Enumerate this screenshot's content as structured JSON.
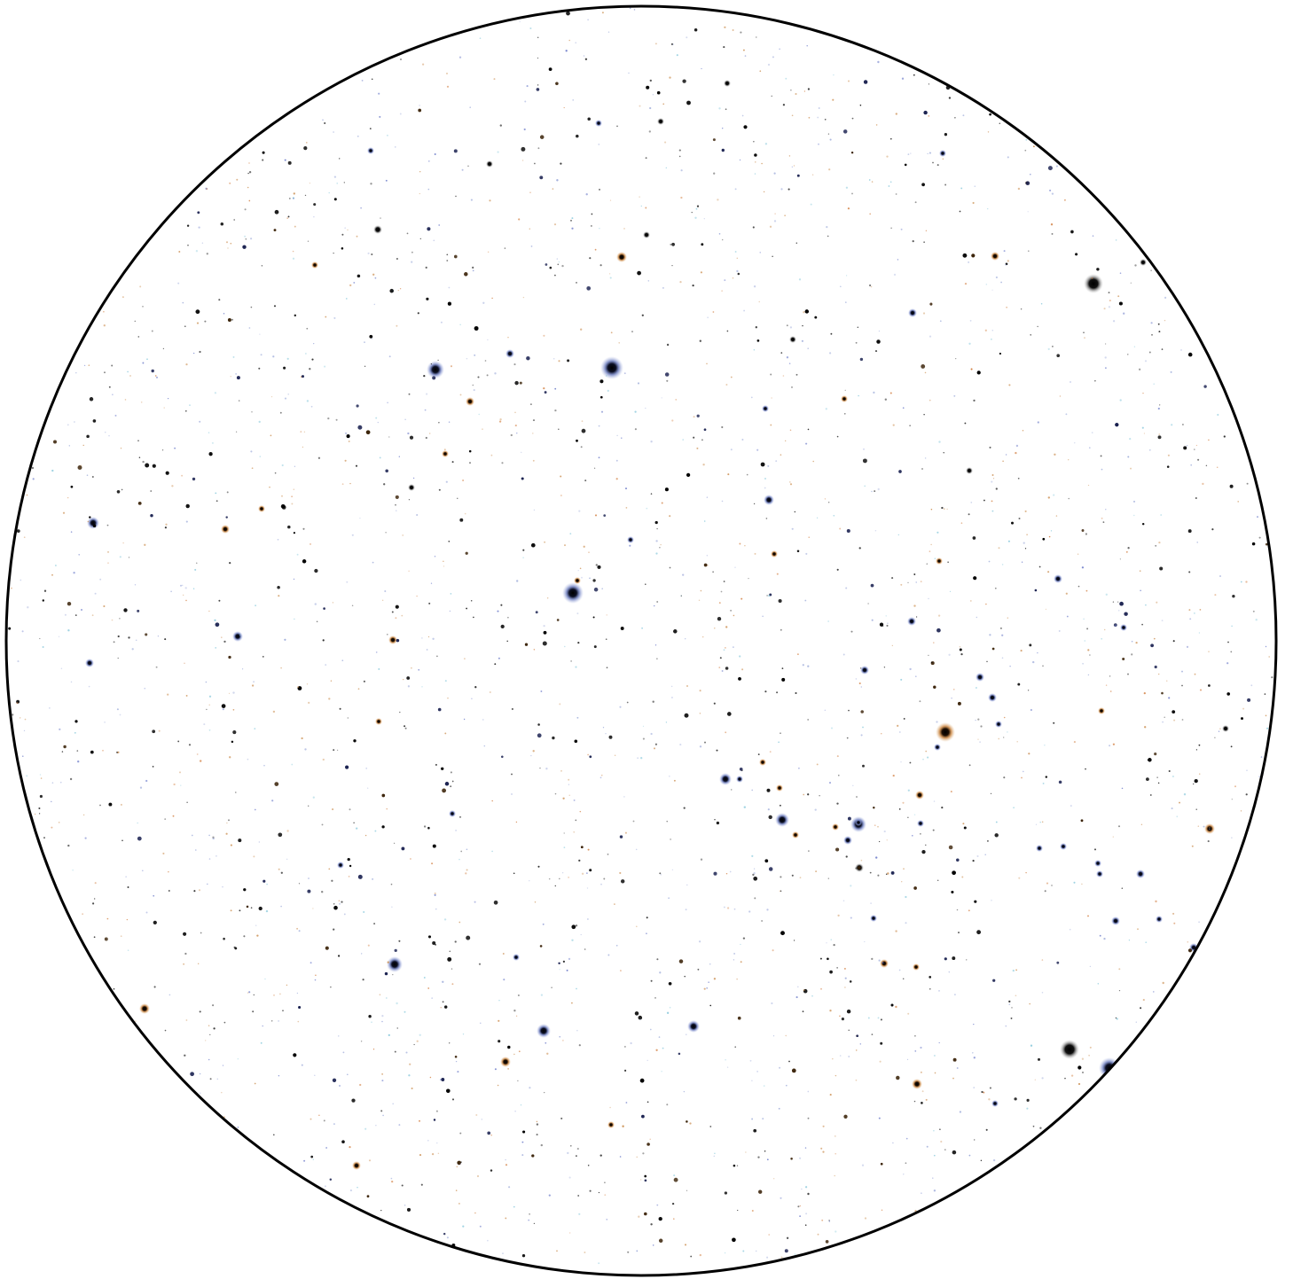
{
  "view": {
    "type": "star-field",
    "background_color": "#ffffff",
    "border_color": "#000000",
    "star_colors": {
      "white": "#000000",
      "blue": "#9aa8d8",
      "orange": "#c98a4a"
    }
  }
}
